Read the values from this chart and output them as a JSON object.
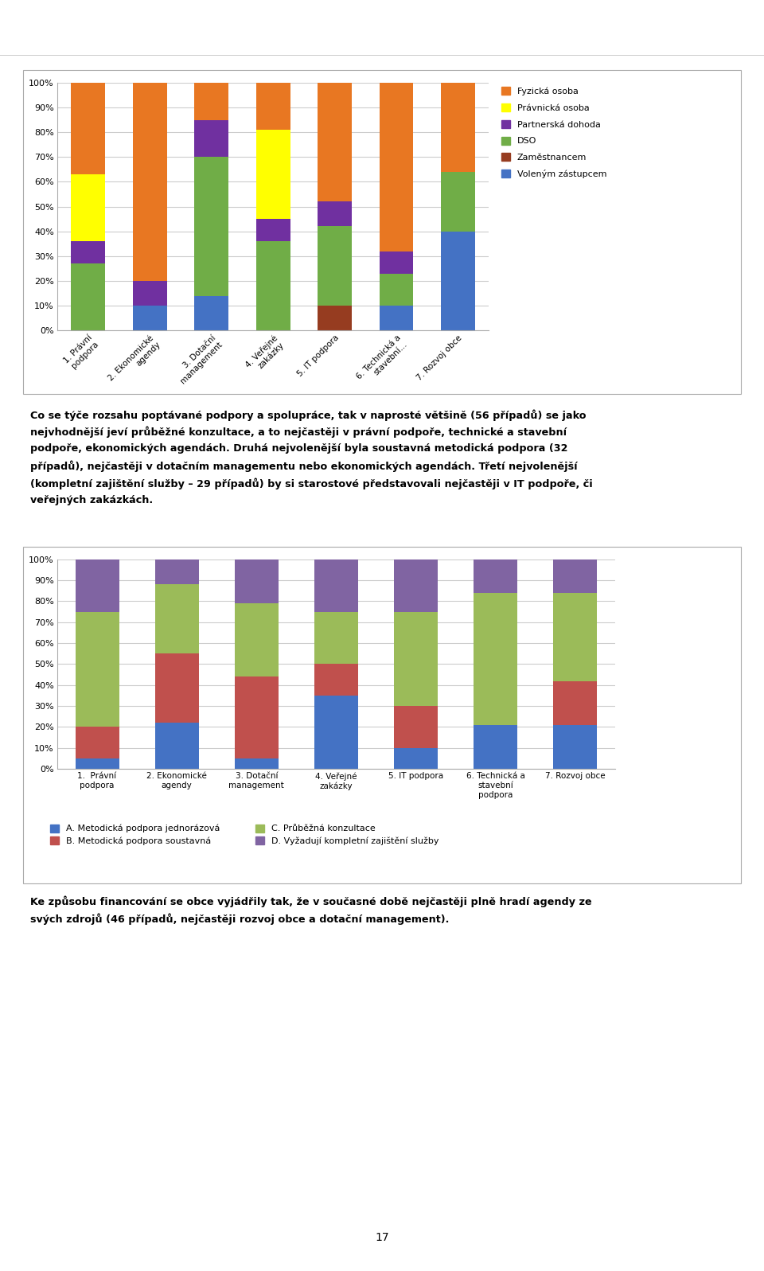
{
  "chart1": {
    "categories": [
      "1. Právní\npodpora",
      "2. Ekonomické\nagendy",
      "3. Dotační\nmanagement",
      "4. Veřejné\nzakázky",
      "5. IT podpora",
      "6. Technická a\nstavební...",
      "7. Rozvoj obce"
    ],
    "series_order": [
      "Voleným zástupcem",
      "Zaměstnancem",
      "DSO",
      "Partnerská dohoda",
      "Právnická osoba",
      "Fyzická osoba"
    ],
    "series": {
      "Voleným zástupcem": [
        0,
        10,
        14,
        0,
        0,
        10,
        40
      ],
      "Zaměstnancem": [
        0,
        0,
        0,
        0,
        10,
        0,
        0
      ],
      "DSO": [
        27,
        0,
        56,
        36,
        32,
        13,
        24
      ],
      "Partnerská dohoda": [
        9,
        10,
        15,
        9,
        10,
        9,
        0
      ],
      "Právnická osoba": [
        27,
        0,
        0,
        36,
        0,
        0,
        0
      ],
      "Fyzická osoba": [
        37,
        80,
        15,
        19,
        48,
        68,
        36
      ]
    },
    "colors": {
      "Fyzická osoba": "#E87722",
      "Právnická osoba": "#FFFF00",
      "Partnerská dohoda": "#7030A0",
      "DSO": "#70AD47",
      "Zaměstnancem": "#963C20",
      "Voleným zástupcem": "#4472C4"
    },
    "legend_order": [
      "Fyzická osoba",
      "Právnická osoba",
      "Partnerská dohoda",
      "DSO",
      "Zaměstnancem",
      "Voleným zástupcem"
    ]
  },
  "chart2": {
    "categories": [
      "1.  Právní\npodpora",
      "2. Ekonomické\nagendy",
      "3. Dotační\nmanagement",
      "4. Veřejné\nzakázky",
      "5. IT podpora",
      "6. Technická a\nstavební\npodpora",
      "7. Rozvoj obce"
    ],
    "series_order": [
      "A. Metodická podpora jednorázová",
      "B. Metodická podpora soustavná",
      "C. Průběžná konzultace",
      "D. Vyžadují kompletní zajištění služby"
    ],
    "series": {
      "A. Metodická podpora jednorázová": [
        5,
        22,
        5,
        35,
        10,
        21,
        21
      ],
      "B. Metodická podpora soustavná": [
        15,
        33,
        39,
        15,
        20,
        0,
        21
      ],
      "C. Průběžná konzultace": [
        55,
        33,
        35,
        25,
        45,
        63,
        42
      ],
      "D. Vyžadují kompletní zajištění služby": [
        25,
        12,
        21,
        25,
        25,
        16,
        16
      ]
    },
    "colors": {
      "A. Metodická podpora jednorázová": "#4472C4",
      "B. Metodická podpora soustavná": "#C0504D",
      "C. Průběžná konzultace": "#9BBB59",
      "D. Vyžadují kompletní zajištění služby": "#8064A2"
    }
  },
  "para1_lines": [
    "Co se týče rozsahu poptávané podpory a spolupráce, tak v naprosté většině (56 případů) se jako",
    "nejvhodnější jeví průběžné konzultace, a to nejčastěji v právní podpoře, technické a stavební",
    "podpoře, ekonomických agendách. Druhá nejvolenější byla soustavná metodická podpora (32",
    "případů), nejčastěji v dotačním managementu nebo ekonomických agendách. Třetí nejvolenější",
    "(kompletní zajištění služby – 29 případů) by si starostové představovali nejčastěji v IT podpoře, či",
    "veřejných zakázkách."
  ],
  "para1_underline": "rozsahu poptávané podpory a spolupráce",
  "para2_lines": [
    "Ke způsobu financování se obce vyjádřily tak, že v současné době nejčastěji plně hradí agendy ze",
    "svých zdrojů (46 případů, nejčastěji rozvoj obce a dotační management)."
  ],
  "para2_underline": "způsobu financování",
  "page_num": "17",
  "background_color": "#FFFFFF",
  "chart_border_color": "#AAAAAA",
  "grid_color": "#CCCCCC"
}
